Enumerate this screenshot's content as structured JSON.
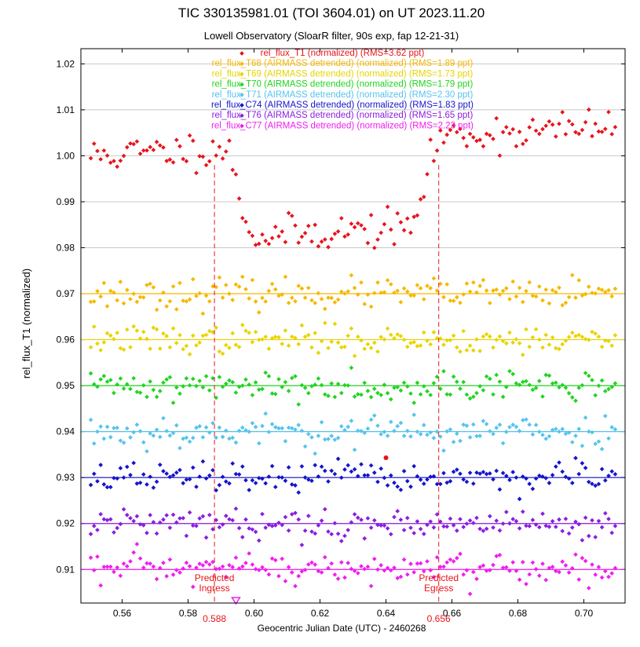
{
  "chart_data": {
    "type": "scatter",
    "title": "TIC 330135981.01 (TOI 3604.01) on UT 2023.11.20",
    "subtitle": "Lowell Observatory (SloarR filter, 90s exp, fap 12-21-31)",
    "xlabel": "Geocentric Julian Date (UTC) - 2460268",
    "ylabel": "rel_flux_T1 (normalized)",
    "xlim": [
      0.5475,
      0.7125
    ],
    "ylim": [
      0.9027,
      1.0233
    ],
    "x_ticks": [
      0.56,
      0.58,
      0.6,
      0.62,
      0.64,
      0.66,
      0.68,
      0.7
    ],
    "x_tick_labels": [
      "0.56",
      "0.58",
      "0.60",
      "0.62",
      "0.64",
      "0.66",
      "0.68",
      "0.70"
    ],
    "y_ticks": [
      0.91,
      0.92,
      0.93,
      0.94,
      0.95,
      0.96,
      0.97,
      0.98,
      0.99,
      1.0,
      1.01,
      1.02
    ],
    "y_tick_labels": [
      "0.91",
      "0.92",
      "0.93",
      "0.94",
      "0.95",
      "0.96",
      "0.97",
      "0.98",
      "0.99",
      "1.00",
      "1.01",
      "1.02"
    ],
    "grid": true,
    "legend_position": "top-center",
    "x_start": 0.5505,
    "x_step": 0.001,
    "count": 160,
    "series": [
      {
        "name": "rel_flux_T1 (normalized) (RMS=3.62 ppt)",
        "color": "#e8141c",
        "offset": 1.0,
        "reference": false,
        "model": "transit",
        "depth": 0.0195,
        "scatter": 0.002,
        "seed": 11
      },
      {
        "name": "rel_flux_T68 (AIRMASS detrended) (normalized) (RMS=1.89 ppt)",
        "color": "#f5b800",
        "offset": 0.97,
        "reference": true,
        "scatter": 0.0016,
        "seed": 23
      },
      {
        "name": "rel_flux_T69 (AIRMASS detrended) (normalized) (RMS=1.73 ppt)",
        "color": "#e8d400",
        "offset": 0.96,
        "reference": true,
        "scatter": 0.0015,
        "seed": 37
      },
      {
        "name": "rel_flux_T70 (AIRMASS detrended) (normalized) (RMS=1.79 ppt)",
        "color": "#22d422",
        "offset": 0.95,
        "reference": true,
        "scatter": 0.0016,
        "seed": 41
      },
      {
        "name": "rel_flux_T71 (AIRMASS detrended) (normalized) (RMS=2.30 ppt)",
        "color": "#56c4ec",
        "offset": 0.94,
        "reference": true,
        "scatter": 0.0018,
        "seed": 53
      },
      {
        "name": "rel_flux_C74 (AIRMASS detrended) (normalized) (RMS=1.83 ppt)",
        "color": "#1414cc",
        "offset": 0.93,
        "reference": true,
        "scatter": 0.0016,
        "seed": 67
      },
      {
        "name": "rel_flux_T76 (AIRMASS detrended) (normalized) (RMS=1.65 ppt)",
        "color": "#8a1ee0",
        "offset": 0.92,
        "reference": true,
        "scatter": 0.0015,
        "seed": 79
      },
      {
        "name": "rel_flux_C77 (AIRMASS detrended) (normalized) (RMS=2.23 ppt)",
        "color": "#f01ef0",
        "offset": 0.91,
        "reference": true,
        "scatter": 0.0018,
        "seed": 97
      }
    ],
    "extra_points": [
      {
        "x": 0.64,
        "y": 0.9343,
        "color": "#e8141c"
      }
    ],
    "predicted_ingress": {
      "x": 0.588,
      "label_top": "Predicted",
      "label_bottom": "Ingress",
      "value_label": "0.588",
      "color": "#e8141c"
    },
    "predicted_egress": {
      "x": 0.656,
      "label_top": "Predicted",
      "label_bottom": "Egress",
      "value_label": "0.656",
      "color": "#e8141c"
    },
    "midtransit_marker": {
      "x": 0.5945,
      "color": "#f01ef0"
    }
  }
}
